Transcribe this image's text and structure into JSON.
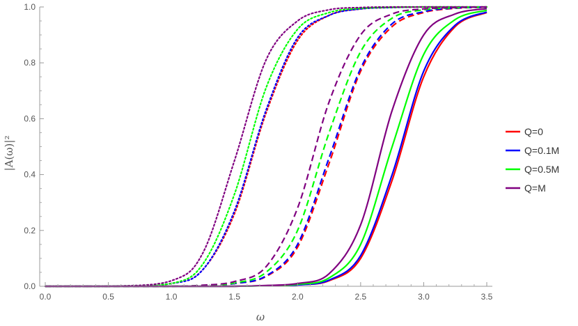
{
  "chart_data": {
    "type": "line",
    "xlabel": "ω",
    "ylabel": "|A(ω)|²",
    "xlim": [
      0,
      3.5
    ],
    "ylim": [
      0,
      1.0
    ],
    "x_ticks": [
      "0.0",
      "0.5",
      "1.0",
      "1.5",
      "2.0",
      "2.5",
      "3.0",
      "3.5"
    ],
    "y_ticks": [
      "0.0",
      "0.2",
      "0.4",
      "0.6",
      "0.8",
      "1.0"
    ],
    "grid": false,
    "legend_position": "right",
    "legend": [
      {
        "label": "Q=0",
        "color": "#ff0000"
      },
      {
        "label": "Q=0.1M",
        "color": "#0000ff"
      },
      {
        "label": "Q=0.5M",
        "color": "#00ff00"
      },
      {
        "label": "Q=M",
        "color": "#800080"
      }
    ],
    "x": [
      0.0,
      0.5,
      1.0,
      1.25,
      1.5,
      1.75,
      2.0,
      2.25,
      2.5,
      2.75,
      3.0,
      3.25,
      3.5
    ],
    "series": [
      {
        "name": "Q=0",
        "line_style": "dotted",
        "color": "#ff0000",
        "values": [
          0.0,
          0.0,
          0.01,
          0.06,
          0.26,
          0.62,
          0.88,
          0.97,
          0.993,
          0.998,
          1.0,
          1.0,
          1.0
        ]
      },
      {
        "name": "Q=0.1M",
        "line_style": "dotted",
        "color": "#0000ff",
        "values": [
          0.0,
          0.0,
          0.01,
          0.06,
          0.27,
          0.63,
          0.89,
          0.97,
          0.993,
          0.998,
          1.0,
          1.0,
          1.0
        ]
      },
      {
        "name": "Q=0.5M",
        "line_style": "dotted",
        "color": "#00ff00",
        "values": [
          0.0,
          0.0,
          0.01,
          0.08,
          0.33,
          0.71,
          0.92,
          0.98,
          0.995,
          0.999,
          1.0,
          1.0,
          1.0
        ]
      },
      {
        "name": "Q=M",
        "line_style": "dotted",
        "color": "#800080",
        "values": [
          0.0,
          0.0,
          0.02,
          0.12,
          0.45,
          0.81,
          0.95,
          0.99,
          0.998,
          1.0,
          1.0,
          1.0,
          1.0
        ]
      },
      {
        "name": "Q=0",
        "line_style": "dashed",
        "color": "#ff0000",
        "values": [
          0.0,
          0.0,
          0.0,
          0.002,
          0.01,
          0.035,
          0.14,
          0.44,
          0.77,
          0.93,
          0.98,
          0.995,
          0.999
        ]
      },
      {
        "name": "Q=0.1M",
        "line_style": "dashed",
        "color": "#0000ff",
        "values": [
          0.0,
          0.0,
          0.0,
          0.002,
          0.01,
          0.037,
          0.15,
          0.46,
          0.78,
          0.94,
          0.983,
          0.996,
          0.999
        ]
      },
      {
        "name": "Q=0.5M",
        "line_style": "dashed",
        "color": "#00ff00",
        "values": [
          0.0,
          0.0,
          0.0,
          0.003,
          0.012,
          0.05,
          0.2,
          0.55,
          0.84,
          0.96,
          0.99,
          0.997,
          1.0
        ]
      },
      {
        "name": "Q=M",
        "line_style": "dashed",
        "color": "#800080",
        "values": [
          0.0,
          0.0,
          0.0,
          0.004,
          0.017,
          0.07,
          0.28,
          0.66,
          0.9,
          0.975,
          0.993,
          0.998,
          1.0
        ]
      },
      {
        "name": "Q=0",
        "line_style": "solid",
        "color": "#ff0000",
        "values": [
          0.0,
          0.0,
          0.0,
          0.0,
          0.0,
          0.002,
          0.005,
          0.02,
          0.1,
          0.38,
          0.75,
          0.93,
          0.98
        ]
      },
      {
        "name": "Q=0.1M",
        "line_style": "solid",
        "color": "#0000ff",
        "values": [
          0.0,
          0.0,
          0.0,
          0.0,
          0.0,
          0.002,
          0.005,
          0.022,
          0.11,
          0.4,
          0.77,
          0.935,
          0.982
        ]
      },
      {
        "name": "Q=0.5M",
        "line_style": "solid",
        "color": "#00ff00",
        "values": [
          0.0,
          0.0,
          0.0,
          0.0,
          0.0,
          0.002,
          0.007,
          0.03,
          0.15,
          0.5,
          0.83,
          0.955,
          0.988
        ]
      },
      {
        "name": "Q=M",
        "line_style": "solid",
        "color": "#800080",
        "values": [
          0.0,
          0.0,
          0.0,
          0.0,
          0.0,
          0.003,
          0.01,
          0.045,
          0.22,
          0.63,
          0.9,
          0.975,
          0.994
        ]
      }
    ]
  }
}
